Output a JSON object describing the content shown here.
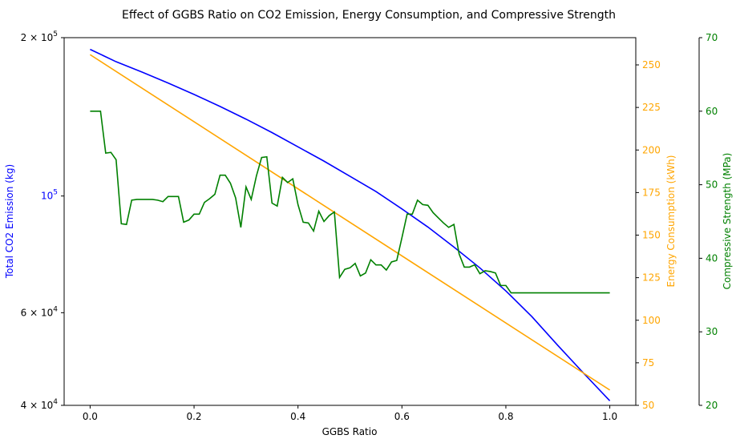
{
  "chart_data": {
    "type": "line",
    "title": "Effect of GGBS Ratio on CO2 Emission, Energy Consumption, and Compressive Strength",
    "xlabel": "GGBS Ratio",
    "xlim": [
      -0.05,
      1.05
    ],
    "x_ticks": [
      0.0,
      0.2,
      0.4,
      0.6,
      0.8,
      1.0
    ],
    "x_tick_labels": [
      "0.0",
      "0.2",
      "0.4",
      "0.6",
      "0.8",
      "1.0"
    ],
    "axes": {
      "co2": {
        "label": "Total CO2 Emission (kg)",
        "color": "#0000ff",
        "scale": "log",
        "ylim": [
          40000,
          200000
        ],
        "ticks": [
          40000,
          60000,
          100000,
          200000
        ],
        "tick_base": [
          "4 × 10",
          "6 × 10",
          "10",
          "2 × 10"
        ],
        "tick_exp": [
          "4",
          "4",
          "5",
          "5"
        ]
      },
      "energy": {
        "label": "Energy Consumption (kWh)",
        "color": "#ffa500",
        "scale": "linear",
        "ylim": [
          50,
          266
        ],
        "ticks": [
          50,
          75,
          100,
          125,
          150,
          175,
          200,
          225,
          250
        ],
        "tick_labels": [
          "50",
          "75",
          "100",
          "125",
          "150",
          "175",
          "200",
          "225",
          "250"
        ]
      },
      "strength": {
        "label": "Compressive Strength (MPa)",
        "color": "#008000",
        "scale": "linear",
        "ylim": [
          20,
          70
        ],
        "ticks": [
          20,
          30,
          40,
          50,
          60,
          70
        ],
        "tick_labels": [
          "20",
          "30",
          "40",
          "50",
          "60",
          "70"
        ]
      }
    },
    "series": [
      {
        "axis": "co2",
        "color": "#0000ff",
        "x": [
          0,
          0.05,
          0.1,
          0.15,
          0.2,
          0.25,
          0.3,
          0.35,
          0.4,
          0.45,
          0.5,
          0.55,
          0.6,
          0.65,
          0.7,
          0.75,
          0.8,
          0.85,
          0.9,
          0.95,
          1.0
        ],
        "y": [
          190000,
          180000,
          172000,
          164000,
          156000,
          148000,
          140000,
          132000,
          124000,
          116500,
          109000,
          102000,
          94500,
          87300,
          80000,
          73000,
          66000,
          59000,
          52000,
          46000,
          40800
        ]
      },
      {
        "axis": "energy",
        "color": "#ffa500",
        "x": [
          0,
          1.0
        ],
        "y": [
          256,
          59
        ]
      },
      {
        "axis": "strength",
        "color": "#008000",
        "x": [
          0,
          0.01,
          0.02,
          0.03,
          0.04,
          0.05,
          0.06,
          0.07,
          0.08,
          0.09,
          0.1,
          0.11,
          0.12,
          0.13,
          0.14,
          0.15,
          0.16,
          0.17,
          0.18,
          0.19,
          0.2,
          0.21,
          0.22,
          0.23,
          0.24,
          0.25,
          0.26,
          0.27,
          0.28,
          0.29,
          0.3,
          0.31,
          0.32,
          0.33,
          0.34,
          0.35,
          0.36,
          0.37,
          0.38,
          0.39,
          0.4,
          0.41,
          0.42,
          0.43,
          0.44,
          0.45,
          0.46,
          0.47,
          0.48,
          0.49,
          0.5,
          0.51,
          0.52,
          0.53,
          0.54,
          0.55,
          0.56,
          0.57,
          0.58,
          0.59,
          0.6,
          0.61,
          0.62,
          0.63,
          0.64,
          0.65,
          0.66,
          0.67,
          0.68,
          0.69,
          0.7,
          0.71,
          0.72,
          0.73,
          0.74,
          0.75,
          0.76,
          0.77,
          0.78,
          0.79,
          0.8,
          0.81,
          0.82,
          0.83,
          0.84,
          0.85,
          0.86,
          0.87,
          0.88,
          0.89,
          0.9,
          0.91,
          0.92,
          0.93,
          0.94,
          0.95,
          0.96,
          0.97,
          0.98,
          0.99,
          1.0
        ],
        "y": [
          60.0,
          60.0,
          60.0,
          54.3,
          54.4,
          53.4,
          44.7,
          44.6,
          47.9,
          48.0,
          48.0,
          48.0,
          48.0,
          47.9,
          47.7,
          48.4,
          48.4,
          48.4,
          44.9,
          45.2,
          46.0,
          46.0,
          47.6,
          48.1,
          48.7,
          51.3,
          51.3,
          50.2,
          48.2,
          44.2,
          49.7,
          48.0,
          51.2,
          53.7,
          53.8,
          47.5,
          47.1,
          51.0,
          50.3,
          50.8,
          47.3,
          44.9,
          44.8,
          43.7,
          46.4,
          45.0,
          45.8,
          46.3,
          37.4,
          38.5,
          38.7,
          39.3,
          37.6,
          38.0,
          39.8,
          39.1,
          39.1,
          38.4,
          39.5,
          39.7,
          42.8,
          46.0,
          46.0,
          47.9,
          47.3,
          47.2,
          46.2,
          45.5,
          44.8,
          44.2,
          44.6,
          40.6,
          38.8,
          38.8,
          39.1,
          37.9,
          38.3,
          38.2,
          38.0,
          36.3,
          36.3,
          35.3,
          35.3,
          35.3,
          35.3,
          35.3,
          35.3,
          35.3,
          35.3,
          35.3,
          35.3,
          35.3,
          35.3,
          35.3,
          35.3,
          35.3,
          35.3,
          35.3,
          35.3,
          35.3,
          35.3
        ]
      }
    ]
  }
}
